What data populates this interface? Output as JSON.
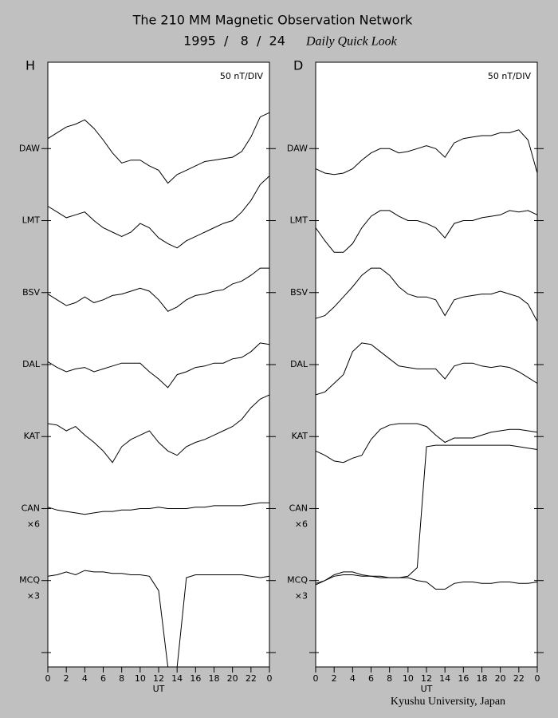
{
  "header": {
    "title": "The 210 MM Magnetic Observation Network",
    "date": "1995  /   8  /  24",
    "subtitle": "Daily Quick Look"
  },
  "footer": "Kyushu University, Japan",
  "chart_data": [
    {
      "type": "line",
      "title": "H",
      "annotation": "50 nT/DIV",
      "xlabel": "UT",
      "x": [
        0,
        1,
        2,
        3,
        4,
        5,
        6,
        7,
        8,
        9,
        10,
        11,
        12,
        13,
        14,
        15,
        16,
        17,
        18,
        19,
        20,
        21,
        22,
        23,
        24
      ],
      "xlim": [
        0,
        24
      ],
      "xticks": [
        0,
        2,
        4,
        6,
        8,
        10,
        12,
        14,
        16,
        18,
        20,
        22,
        {
          "value": 24,
          "label": "0"
        }
      ],
      "ylim": [
        -60,
        360
      ],
      "yticks": [
        {
          "value": 300,
          "label": "DAW"
        },
        {
          "value": 250,
          "label": "LMT"
        },
        {
          "value": 200,
          "label": "BSV"
        },
        {
          "value": 150,
          "label": "DAL"
        },
        {
          "value": 100,
          "label": "KAT"
        },
        {
          "value": 50,
          "label": "CAN"
        },
        {
          "value": 0,
          "label": "MCQ"
        },
        {
          "value": -50,
          "label": null
        }
      ],
      "series": [
        {
          "color": "#000000",
          "values": [
            307,
            311,
            315,
            317,
            320,
            314,
            306,
            297,
            290,
            292,
            292,
            288,
            285,
            276,
            282,
            285,
            288,
            291,
            292,
            293,
            294,
            298,
            308,
            322,
            325
          ]
        },
        {
          "color": "#000000",
          "values": [
            260,
            256,
            252,
            254,
            256,
            250,
            245,
            242,
            239,
            242,
            248,
            245,
            238,
            234,
            231,
            236,
            239,
            242,
            245,
            248,
            250,
            256,
            264,
            275,
            281
          ]
        },
        {
          "color": "#000000",
          "values": [
            199,
            195,
            191,
            193,
            197,
            193,
            195,
            198,
            199,
            201,
            203,
            201,
            195,
            187,
            190,
            195,
            198,
            199,
            201,
            202,
            206,
            208,
            212,
            217,
            217
          ]
        },
        {
          "color": "#000000",
          "values": [
            152,
            148,
            145,
            147,
            148,
            145,
            147,
            149,
            151,
            151,
            151,
            145,
            140,
            134,
            143,
            145,
            148,
            149,
            151,
            151,
            154,
            155,
            159,
            165,
            164
          ]
        },
        {
          "color": "#000000",
          "values": [
            109,
            108,
            104,
            107,
            101,
            96,
            90,
            82,
            93,
            98,
            101,
            104,
            96,
            90,
            87,
            93,
            96,
            98,
            101,
            104,
            107,
            112,
            120,
            126,
            129
          ]
        },
        {
          "color": "#000000",
          "scale": "×6",
          "values": [
            51,
            49,
            48,
            47,
            46,
            47,
            48,
            48,
            49,
            49,
            50,
            50,
            51,
            50,
            50,
            50,
            51,
            51,
            52,
            52,
            52,
            52,
            53,
            54,
            54
          ]
        },
        {
          "color": "#000000",
          "scale": "×3",
          "values": [
            3,
            4,
            6,
            4,
            7,
            6,
            6,
            5,
            5,
            4,
            4,
            3,
            -7,
            -60,
            -60,
            2,
            4,
            4,
            4,
            4,
            4,
            4,
            3,
            2,
            3
          ]
        }
      ]
    },
    {
      "type": "line",
      "title": "D",
      "annotation": "50 nT/DIV",
      "xlabel": "UT",
      "x": [
        0,
        1,
        2,
        3,
        4,
        5,
        6,
        7,
        8,
        9,
        10,
        11,
        12,
        13,
        14,
        15,
        16,
        17,
        18,
        19,
        20,
        21,
        22,
        23,
        24
      ],
      "xlim": [
        0,
        24
      ],
      "xticks": [
        0,
        2,
        4,
        6,
        8,
        10,
        12,
        14,
        16,
        18,
        20,
        22,
        {
          "value": 24,
          "label": "0"
        }
      ],
      "ylim": [
        -60,
        360
      ],
      "yticks": [
        {
          "value": 300,
          "label": "DAW"
        },
        {
          "value": 250,
          "label": "LMT"
        },
        {
          "value": 200,
          "label": "BSV"
        },
        {
          "value": 150,
          "label": "DAL"
        },
        {
          "value": 100,
          "label": "KAT"
        },
        {
          "value": 50,
          "label": "CAN"
        },
        {
          "value": 0,
          "label": "MCQ"
        },
        {
          "value": -50,
          "label": null
        }
      ],
      "series": [
        {
          "color": "#000000",
          "values": [
            286,
            283,
            282,
            283,
            286,
            292,
            297,
            300,
            300,
            297,
            298,
            300,
            302,
            300,
            294,
            304,
            307,
            308,
            309,
            309,
            311,
            311,
            313,
            306,
            283
          ]
        },
        {
          "color": "#000000",
          "values": [
            245,
            236,
            228,
            228,
            234,
            245,
            253,
            257,
            257,
            253,
            250,
            250,
            248,
            245,
            238,
            248,
            250,
            250,
            252,
            253,
            254,
            257,
            256,
            257,
            254
          ]
        },
        {
          "color": "#000000",
          "values": [
            182,
            184,
            190,
            197,
            204,
            212,
            217,
            217,
            212,
            204,
            199,
            197,
            197,
            195,
            184,
            195,
            197,
            198,
            199,
            199,
            201,
            199,
            197,
            192,
            180
          ]
        },
        {
          "color": "#000000",
          "values": [
            129,
            131,
            137,
            143,
            159,
            165,
            164,
            159,
            154,
            149,
            148,
            147,
            147,
            147,
            140,
            149,
            151,
            151,
            149,
            148,
            149,
            148,
            145,
            141,
            137
          ]
        },
        {
          "color": "#000000",
          "values": [
            90,
            87,
            83,
            82,
            85,
            87,
            98,
            105,
            108,
            109,
            109,
            109,
            107,
            101,
            96,
            99,
            99,
            99,
            101,
            103,
            104,
            105,
            105,
            104,
            103
          ]
        },
        {
          "color": "#000000",
          "scale": "×6",
          "values": [
            -3,
            0,
            3,
            4,
            4,
            3,
            3,
            2,
            2,
            2,
            3,
            9,
            93,
            94,
            94,
            94,
            94,
            94,
            94,
            94,
            94,
            94,
            93,
            92,
            91
          ]
        },
        {
          "color": "#000000",
          "scale": "×3",
          "values": [
            -2,
            0,
            4,
            6,
            6,
            4,
            3,
            3,
            2,
            2,
            2,
            0,
            -1,
            -6,
            -6,
            -2,
            -1,
            -1,
            -2,
            -2,
            -1,
            -1,
            -2,
            -2,
            -1
          ]
        }
      ]
    }
  ]
}
